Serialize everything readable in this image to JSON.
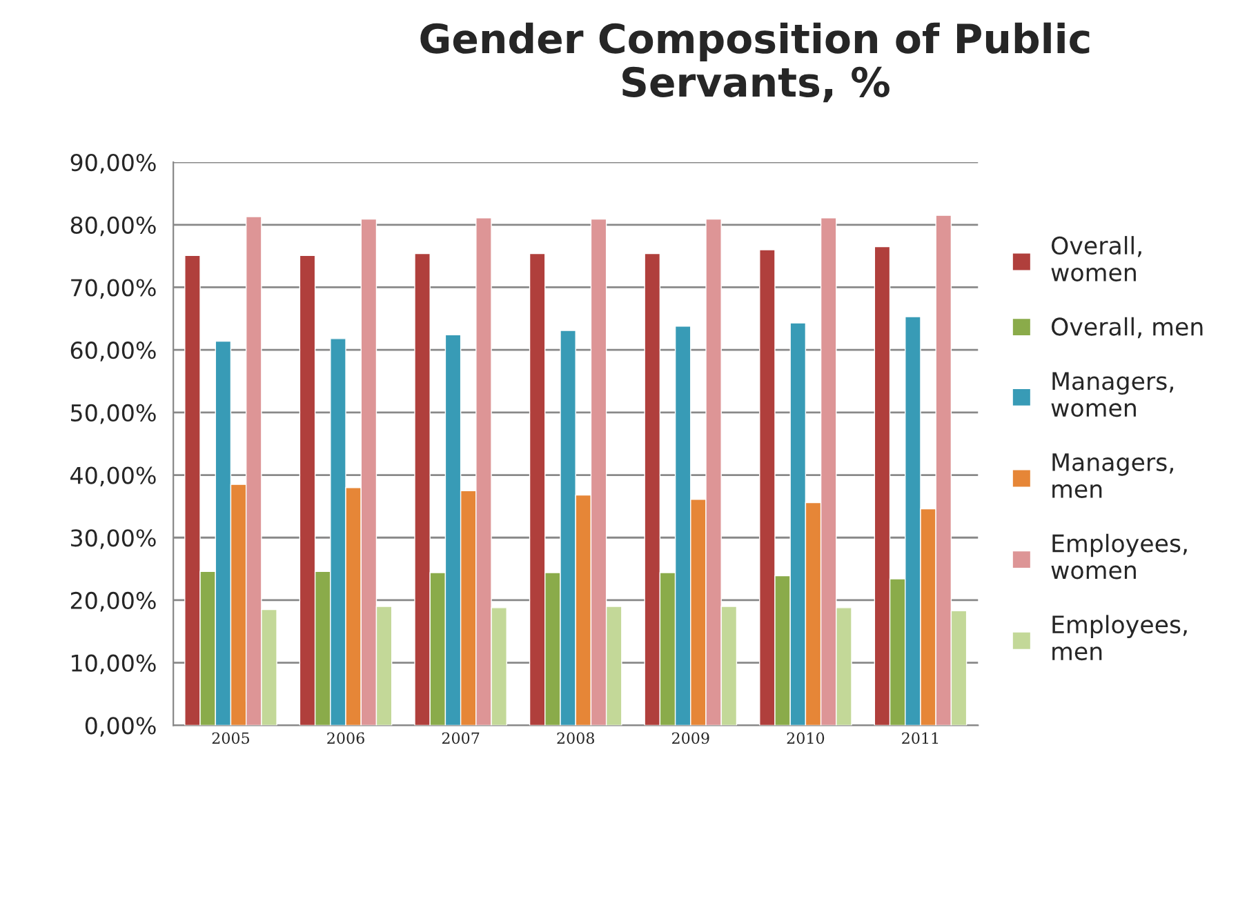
{
  "chart_data": {
    "type": "bar",
    "title": "Gender Composition of Public\nServants, %",
    "categories": [
      "2005",
      "2006",
      "2007",
      "2008",
      "2009",
      "2010",
      "2011"
    ],
    "series": [
      {
        "name": "Overall,\nwomen",
        "color": "#b03f3c",
        "values": [
          75.1,
          75.1,
          75.4,
          75.4,
          75.4,
          76.0,
          76.5
        ]
      },
      {
        "name": "Overall, men",
        "color": "#8aab4a",
        "values": [
          24.6,
          24.6,
          24.4,
          24.4,
          24.4,
          23.9,
          23.4
        ]
      },
      {
        "name": "Managers,\nwomen",
        "color": "#389bb6",
        "values": [
          61.4,
          61.8,
          62.4,
          63.1,
          63.8,
          64.3,
          65.3
        ]
      },
      {
        "name": "Managers,\nmen",
        "color": "#e68637",
        "values": [
          38.5,
          38.0,
          37.5,
          36.8,
          36.1,
          35.6,
          34.6
        ]
      },
      {
        "name": "Employees,\nwomen",
        "color": "#dd9596",
        "values": [
          81.3,
          80.9,
          81.1,
          80.9,
          80.9,
          81.1,
          81.5
        ]
      },
      {
        "name": "Employees,\nmen",
        "color": "#c3d898",
        "values": [
          18.5,
          19.0,
          18.8,
          19.0,
          19.0,
          18.8,
          18.3
        ]
      }
    ],
    "ylim": [
      0,
      90
    ],
    "yticks": [
      {
        "value": 0,
        "label": "0,00%"
      },
      {
        "value": 10,
        "label": "10,00%"
      },
      {
        "value": 20,
        "label": "20,00%"
      },
      {
        "value": 30,
        "label": "30,00%"
      },
      {
        "value": 40,
        "label": "40,00%"
      },
      {
        "value": 50,
        "label": "50,00%"
      },
      {
        "value": 60,
        "label": "60,00%"
      },
      {
        "value": 70,
        "label": "70,00%"
      },
      {
        "value": 80,
        "label": "80,00%"
      },
      {
        "value": 90,
        "label": "90,00%"
      }
    ],
    "grid": "y",
    "legend": "right"
  }
}
